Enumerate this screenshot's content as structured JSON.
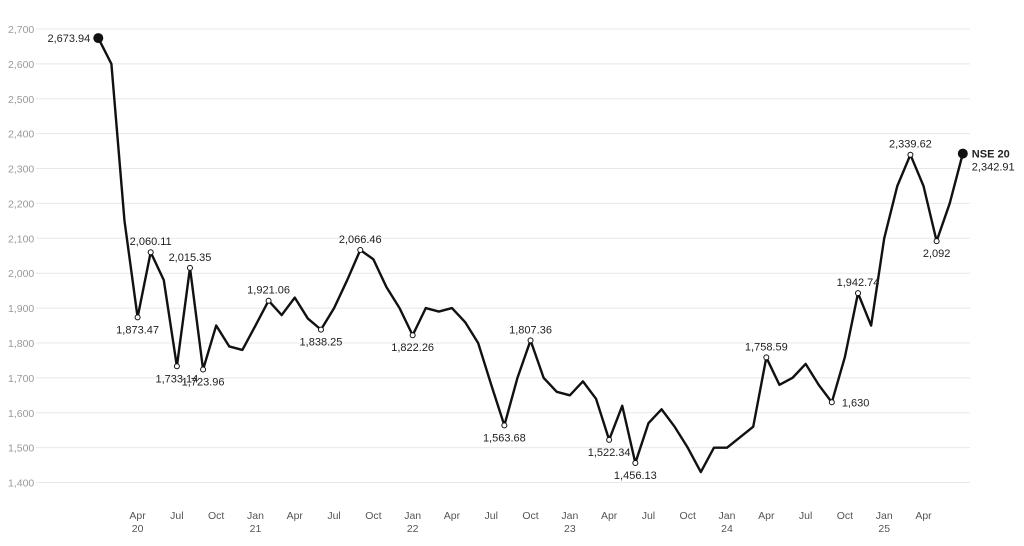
{
  "chart_data": {
    "type": "line",
    "x": [
      "2020-01",
      "2020-02",
      "2020-03",
      "2020-04",
      "2020-05",
      "2020-06",
      "2020-07",
      "2020-08",
      "2020-09",
      "2020-10",
      "2020-11",
      "2020-12",
      "2021-01",
      "2021-02",
      "2021-03",
      "2021-04",
      "2021-05",
      "2021-06",
      "2021-07",
      "2021-08",
      "2021-09",
      "2021-10",
      "2021-11",
      "2021-12",
      "2022-01",
      "2022-02",
      "2022-03",
      "2022-04",
      "2022-05",
      "2022-06",
      "2022-07",
      "2022-08",
      "2022-09",
      "2022-10",
      "2022-11",
      "2022-12",
      "2023-01",
      "2023-02",
      "2023-03",
      "2023-04",
      "2023-05",
      "2023-06",
      "2023-07",
      "2023-08",
      "2023-09",
      "2023-10",
      "2023-11",
      "2023-12",
      "2024-01",
      "2024-02",
      "2024-03",
      "2024-04",
      "2024-05",
      "2024-06",
      "2024-07",
      "2024-08",
      "2024-09",
      "2024-10",
      "2024-11",
      "2024-12",
      "2025-01",
      "2025-02",
      "2025-03",
      "2025-04",
      "2025-05",
      "2025-06",
      "2025-07"
    ],
    "series": [
      {
        "name": "NSE 20",
        "color": "#111111",
        "values": [
          2673.94,
          2600,
          2150,
          1873.47,
          2060.11,
          1980,
          1733.14,
          2015.35,
          1723.96,
          1850,
          1790,
          1780,
          1850,
          1921.06,
          1880,
          1930,
          1870,
          1838.25,
          1900,
          1980,
          2066.46,
          2040,
          1960,
          1900,
          1822.26,
          1900,
          1890,
          1900,
          1860,
          1800,
          1680,
          1563.68,
          1700,
          1807.36,
          1700,
          1660,
          1650,
          1690,
          1640,
          1522.34,
          1620,
          1456.13,
          1570,
          1610,
          1560,
          1500,
          1430,
          1500,
          1500,
          1530,
          1560,
          1758.59,
          1680,
          1700,
          1740,
          1680,
          1630,
          1760,
          1942.74,
          1850,
          2100,
          2250,
          2339.62,
          2250,
          2092,
          2200,
          2342.91
        ],
        "value_labels": [
          "2,673.94",
          null,
          null,
          "1,873.47",
          "2,060.11",
          null,
          "1,733.14",
          "2,015.35",
          "1,723.96",
          null,
          null,
          null,
          null,
          "1,921.06",
          null,
          null,
          null,
          "1,838.25",
          null,
          null,
          "2,066.46",
          null,
          null,
          null,
          "1,822.26",
          null,
          null,
          null,
          null,
          null,
          null,
          "1,563.68",
          null,
          "1,807.36",
          null,
          null,
          null,
          null,
          null,
          "1,522.34",
          null,
          "1,456.13",
          null,
          null,
          null,
          null,
          null,
          null,
          null,
          null,
          null,
          "1,758.59",
          null,
          null,
          null,
          null,
          "1,630",
          null,
          "1,942.74",
          null,
          null,
          null,
          "2,339.62",
          null,
          "2,092",
          null,
          "2,342.91"
        ]
      }
    ],
    "xlim": [
      "2019-10",
      "2025-09"
    ],
    "xticks": [
      {
        "value": "2020-04",
        "label": "Apr 20"
      },
      {
        "value": "2020-07",
        "label": "Jul"
      },
      {
        "value": "2020-10",
        "label": "Oct"
      },
      {
        "value": "2021-01",
        "label": "Jan 21"
      },
      {
        "value": "2021-04",
        "label": "Apr"
      },
      {
        "value": "2021-07",
        "label": "Jul"
      },
      {
        "value": "2021-10",
        "label": "Oct"
      },
      {
        "value": "2022-01",
        "label": "Jan 22"
      },
      {
        "value": "2022-04",
        "label": "Apr"
      },
      {
        "value": "2022-07",
        "label": "Jul"
      },
      {
        "value": "2022-10",
        "label": "Oct"
      },
      {
        "value": "2023-01",
        "label": "Jan 23"
      },
      {
        "value": "2023-04",
        "label": "Apr"
      },
      {
        "value": "2023-07",
        "label": "Jul"
      },
      {
        "value": "2023-10",
        "label": "Oct"
      },
      {
        "value": "2024-01",
        "label": "Jan 24"
      },
      {
        "value": "2024-04",
        "label": "Apr"
      },
      {
        "value": "2024-07",
        "label": "Jul"
      },
      {
        "value": "2024-10",
        "label": "Oct"
      },
      {
        "value": "2025-01",
        "label": "Jan 25"
      },
      {
        "value": "2025-04",
        "label": "Apr"
      }
    ],
    "ylim": [
      1370,
      2720
    ],
    "yticks": [
      {
        "value": 1400,
        "label": "1,400"
      },
      {
        "value": 1500,
        "label": "1,500"
      },
      {
        "value": 1600,
        "label": "1,600"
      },
      {
        "value": 1700,
        "label": "1,700"
      },
      {
        "value": 1800,
        "label": "1,800"
      },
      {
        "value": 1900,
        "label": "1,900"
      },
      {
        "value": 2000,
        "label": "2,000"
      },
      {
        "value": 2100,
        "label": "2,100"
      },
      {
        "value": 2200,
        "label": "2,200"
      },
      {
        "value": 2300,
        "label": "2,300"
      },
      {
        "value": 2400,
        "label": "2,400"
      },
      {
        "value": 2500,
        "label": "2,500"
      },
      {
        "value": 2600,
        "label": "2,600"
      },
      {
        "value": 2700,
        "label": "2,700"
      }
    ],
    "grid": true
  }
}
